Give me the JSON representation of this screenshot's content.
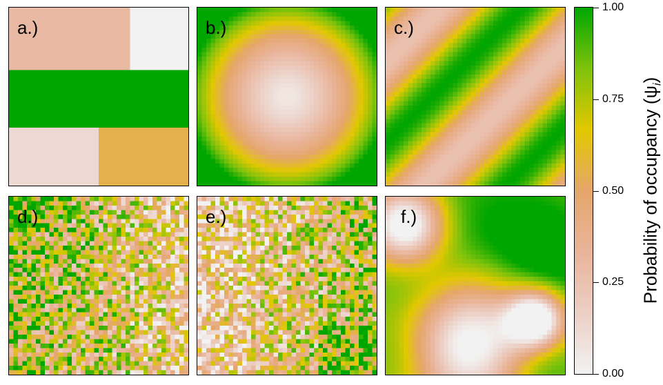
{
  "colors": {
    "scale": [
      "#f2f2f2",
      "#eccfc5",
      "#e9b49a",
      "#e5a66b",
      "#e2c800",
      "#7fc20c",
      "#00a600"
    ]
  },
  "chart_data": [
    {
      "type": "heatmap",
      "panel_label": "a.)",
      "pattern": "blocks",
      "blocks": [
        {
          "region": "top-left",
          "value": 0.3
        },
        {
          "region": "top-right",
          "value": 0.0
        },
        {
          "region": "middle",
          "value": 1.0
        },
        {
          "region": "bottom-left",
          "value": 0.12
        },
        {
          "region": "bottom-right",
          "value": 0.55
        }
      ]
    },
    {
      "type": "heatmap",
      "panel_label": "b.)",
      "pattern": "radial",
      "center_value": 0.05,
      "edge_value": 1.0
    },
    {
      "type": "heatmap",
      "panel_label": "c.)",
      "pattern": "diagonal-bands",
      "min": 0.25,
      "max": 1.0
    },
    {
      "type": "heatmap",
      "panel_label": "d.)",
      "pattern": "random-noise",
      "min": 0.0,
      "max": 1.0,
      "trend": "higher toward left"
    },
    {
      "type": "heatmap",
      "panel_label": "e.)",
      "pattern": "random-noise",
      "min": 0.0,
      "max": 1.0,
      "trend": "higher toward right"
    },
    {
      "type": "heatmap",
      "panel_label": "f.)",
      "pattern": "smooth-blobs",
      "min": 0.0,
      "max": 1.0
    }
  ],
  "colorbar": {
    "title": "Probability of occupancy (ψ",
    "title_sub": "i",
    "title_end": ")",
    "range": [
      0,
      1
    ],
    "ticks": [
      "0.00",
      "0.25",
      "0.50",
      "0.75",
      "1.00"
    ]
  }
}
